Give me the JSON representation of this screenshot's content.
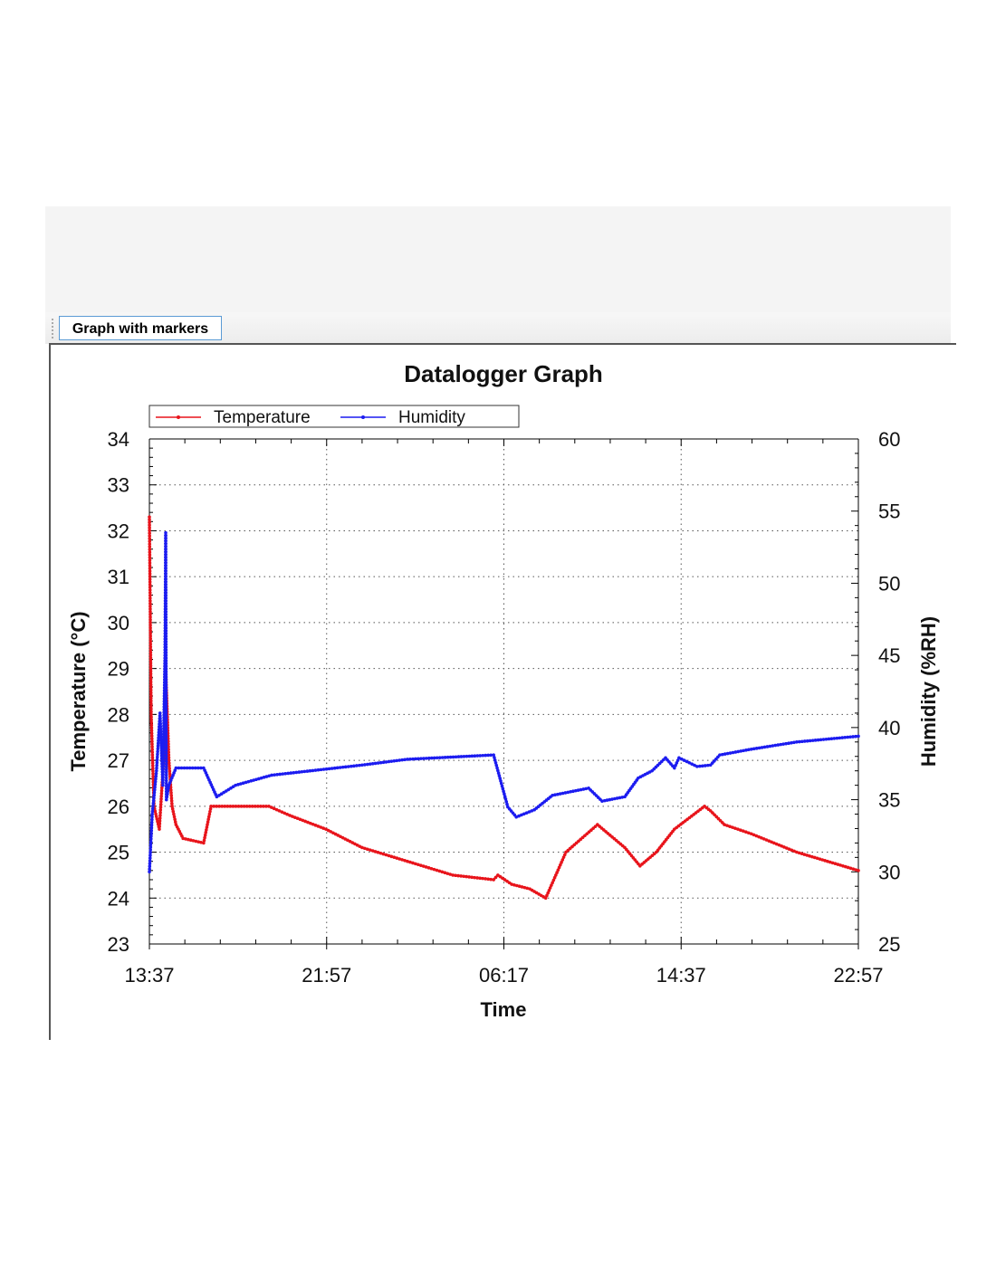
{
  "tab": {
    "label": "Graph with markers"
  },
  "chart_data": {
    "type": "line",
    "title": "Datalogger Graph",
    "xlabel": "Time",
    "ylabel": "Temperature (°C)",
    "y2label": "Humidity (%RH)",
    "x_unit": "minutes since 13:37",
    "xlim": [
      0,
      2000
    ],
    "x_ticks": [
      {
        "m": 0,
        "label": "13:37"
      },
      {
        "m": 500,
        "label": "21:57"
      },
      {
        "m": 1000,
        "label": "06:17"
      },
      {
        "m": 1500,
        "label": "14:37"
      },
      {
        "m": 2000,
        "label": "22:57"
      }
    ],
    "ylim": [
      23,
      34
    ],
    "y_ticks": [
      23,
      24,
      25,
      26,
      27,
      28,
      29,
      30,
      31,
      32,
      33,
      34
    ],
    "y2lim": [
      25,
      60
    ],
    "y2_ticks": [
      25,
      30,
      35,
      40,
      45,
      50,
      55,
      60
    ],
    "grid": true,
    "legend": "top-left",
    "series": [
      {
        "name": "Temperature",
        "axis": "left",
        "color": "#e8141b",
        "points": [
          [
            0,
            32.3
          ],
          [
            5,
            28
          ],
          [
            13,
            26
          ],
          [
            28,
            25.5
          ],
          [
            40,
            27
          ],
          [
            46,
            29
          ],
          [
            55,
            27
          ],
          [
            64,
            26
          ],
          [
            75,
            25.6
          ],
          [
            95,
            25.3
          ],
          [
            153,
            25.2
          ],
          [
            174,
            26
          ],
          [
            337,
            26
          ],
          [
            396,
            25.8
          ],
          [
            498,
            25.5
          ],
          [
            600,
            25.1
          ],
          [
            728,
            24.8
          ],
          [
            856,
            24.5
          ],
          [
            971,
            24.4
          ],
          [
            983,
            24.5
          ],
          [
            1022,
            24.3
          ],
          [
            1073,
            24.2
          ],
          [
            1118,
            24.0
          ],
          [
            1175,
            25.0
          ],
          [
            1264,
            25.6
          ],
          [
            1341,
            25.1
          ],
          [
            1384,
            24.7
          ],
          [
            1430,
            25.0
          ],
          [
            1481,
            25.5
          ],
          [
            1566,
            26.0
          ],
          [
            1583,
            25.9
          ],
          [
            1622,
            25.6
          ],
          [
            1698,
            25.4
          ],
          [
            1826,
            25.0
          ],
          [
            2000,
            24.6
          ]
        ]
      },
      {
        "name": "Humidity",
        "axis": "right",
        "color": "#1c1cf0",
        "points": [
          [
            0,
            30
          ],
          [
            8,
            34
          ],
          [
            20,
            37
          ],
          [
            30,
            41
          ],
          [
            38,
            36
          ],
          [
            44,
            45
          ],
          [
            46,
            53.5
          ],
          [
            48,
            35
          ],
          [
            55,
            36
          ],
          [
            75,
            37.2
          ],
          [
            153,
            37.2
          ],
          [
            190,
            35.2
          ],
          [
            243,
            36.0
          ],
          [
            345,
            36.7
          ],
          [
            600,
            37.4
          ],
          [
            728,
            37.8
          ],
          [
            971,
            38.1
          ],
          [
            1011,
            34.5
          ],
          [
            1035,
            33.8
          ],
          [
            1086,
            34.3
          ],
          [
            1137,
            35.3
          ],
          [
            1239,
            35.8
          ],
          [
            1277,
            34.9
          ],
          [
            1341,
            35.2
          ],
          [
            1379,
            36.5
          ],
          [
            1418,
            37.0
          ],
          [
            1456,
            37.9
          ],
          [
            1481,
            37.2
          ],
          [
            1494,
            37.9
          ],
          [
            1545,
            37.3
          ],
          [
            1583,
            37.4
          ],
          [
            1609,
            38.1
          ],
          [
            1698,
            38.5
          ],
          [
            1826,
            39.0
          ],
          [
            2000,
            39.4
          ]
        ]
      }
    ]
  }
}
